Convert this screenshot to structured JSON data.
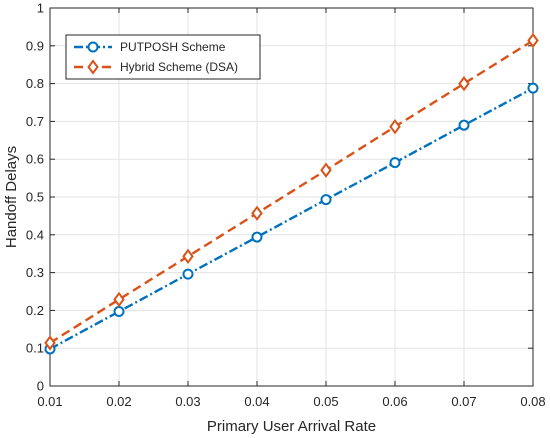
{
  "chart_data": {
    "type": "line",
    "xlabel": "Primary User Arrival Rate",
    "ylabel": "Handoff Delays",
    "xlim": [
      0.01,
      0.08
    ],
    "ylim": [
      0,
      1
    ],
    "x_ticks": [
      "0.01",
      "0.02",
      "0.03",
      "0.04",
      "0.05",
      "0.06",
      "0.07",
      "0.08"
    ],
    "y_ticks": [
      "0",
      "0.1",
      "0.2",
      "0.3",
      "0.4",
      "0.5",
      "0.6",
      "0.7",
      "0.8",
      "0.9",
      "1"
    ],
    "grid": true,
    "legend_position": "top-left",
    "x": [
      0.01,
      0.02,
      0.03,
      0.04,
      0.05,
      0.06,
      0.07,
      0.08
    ],
    "series": [
      {
        "name": "PUTPOSH Scheme",
        "color": "#0072BD",
        "line_style": "dash-dot",
        "marker": "circle",
        "values": [
          0.098,
          0.197,
          0.296,
          0.394,
          0.493,
          0.591,
          0.69,
          0.788
        ]
      },
      {
        "name": "Hybrid Scheme (DSA)",
        "color": "#D95319",
        "line_style": "dashed",
        "marker": "diamond",
        "values": [
          0.114,
          0.229,
          0.343,
          0.457,
          0.571,
          0.686,
          0.8,
          0.914
        ]
      }
    ]
  }
}
